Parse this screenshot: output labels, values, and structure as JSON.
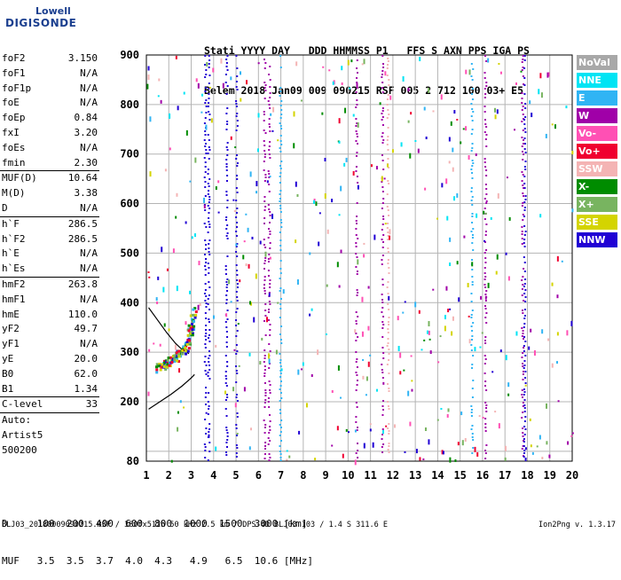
{
  "brand": {
    "line1": "Lowell",
    "line2": "DIGISONDE"
  },
  "header": {
    "line1": "Stati YYYY DAY   DDD HHMMSS P1   FFS S AXN PPS IGA PS",
    "line2": "Belem 2018 Jan09 009 090215 RSF 005 2 712 100 03+ E5"
  },
  "params_groups": [
    [
      [
        "foF2",
        "3.150"
      ],
      [
        "foF1",
        "N/A"
      ],
      [
        "foF1p",
        "N/A"
      ],
      [
        "foE",
        "N/A"
      ],
      [
        "foEp",
        "0.84"
      ],
      [
        "fxI",
        "3.20"
      ],
      [
        "foEs",
        "N/A"
      ],
      [
        "fmin",
        "2.30"
      ]
    ],
    [
      [
        "MUF(D)",
        "10.64"
      ],
      [
        "M(D)",
        "3.38"
      ],
      [
        "D",
        "N/A"
      ]
    ],
    [
      [
        "h`F",
        "286.5"
      ],
      [
        "h`F2",
        "286.5"
      ],
      [
        "h`E",
        "N/A"
      ],
      [
        "h`Es",
        "N/A"
      ]
    ],
    [
      [
        "hmF2",
        "263.8"
      ],
      [
        "hmF1",
        "N/A"
      ],
      [
        "hmE",
        "110.0"
      ],
      [
        "yF2",
        "49.7"
      ],
      [
        "yF1",
        "N/A"
      ],
      [
        "yE",
        "20.0"
      ],
      [
        "B0",
        "62.0"
      ],
      [
        "B1",
        "1.34"
      ]
    ],
    [
      [
        "C-level",
        "33"
      ]
    ]
  ],
  "auto_lines": [
    "Auto:",
    "Artist5",
    "500200"
  ],
  "legend": [
    {
      "label": "NoVal",
      "color": "#a8a8a8"
    },
    {
      "label": "NNE",
      "color": "#00e4f4"
    },
    {
      "label": "E",
      "color": "#30b4f4"
    },
    {
      "label": "W",
      "color": "#a000a8"
    },
    {
      "label": "Vo-",
      "color": "#ff50b4"
    },
    {
      "label": "Vo+",
      "color": "#f00030"
    },
    {
      "label": "SSW",
      "color": "#f4b4b4"
    },
    {
      "label": "X-",
      "color": "#008c00"
    },
    {
      "label": "X+",
      "color": "#78b460"
    },
    {
      "label": "SSE",
      "color": "#d4d400"
    },
    {
      "label": "NNW",
      "color": "#2000d4"
    }
  ],
  "dmuf": {
    "d_line": "D     100  200  400  600  800  1000  1500  3000 [km]",
    "muf_line": "MUF   3.5  3.5  3.7  4.0  4.3   4.9   6.5  10.6 [MHz]"
  },
  "footer": {
    "file": "BLJ03_20180009090215.RSF / 380fx512h 50 kHz 2.5 km / DPS-4D BLJ03 103 / 1.4 S 311.6 E",
    "version": "Ion2Png v. 1.3.17"
  },
  "chart_data": {
    "type": "scatter",
    "title": "",
    "xlabel": "",
    "ylabel": "",
    "xlim": [
      1,
      20
    ],
    "ylim": [
      80,
      900
    ],
    "x_ticks": [
      1,
      2,
      3,
      4,
      5,
      6,
      7,
      8,
      9,
      10,
      11,
      12,
      13,
      14,
      15,
      16,
      17,
      18,
      19,
      20
    ],
    "y_ticks": [
      100,
      200,
      300,
      400,
      500,
      600,
      700,
      800,
      900
    ],
    "y_tick_labels": [
      "",
      "200",
      "300",
      "400",
      "500",
      "600",
      "700",
      "800",
      "900"
    ],
    "y_min_label": "80",
    "grid": true,
    "trace": {
      "color_sequence": [
        "#78b460",
        "#d4d400",
        "#f00030",
        "#008c00",
        "#2000d4",
        "#30b4f4"
      ],
      "points": [
        [
          1.5,
          270
        ],
        [
          1.6,
          272
        ],
        [
          1.7,
          275
        ],
        [
          1.8,
          278
        ],
        [
          1.9,
          280
        ],
        [
          2.0,
          283
        ],
        [
          2.1,
          286
        ],
        [
          2.2,
          289
        ],
        [
          2.3,
          292
        ],
        [
          2.4,
          296
        ],
        [
          2.5,
          300
        ],
        [
          2.6,
          305
        ],
        [
          2.7,
          312
        ],
        [
          2.75,
          318
        ],
        [
          2.8,
          326
        ],
        [
          2.85,
          334
        ],
        [
          2.9,
          342
        ],
        [
          2.95,
          352
        ],
        [
          3.0,
          362
        ],
        [
          3.05,
          372
        ],
        [
          3.1,
          385
        ]
      ]
    },
    "model_curves": [
      {
        "name": "",
        "color": "#000000",
        "points": [
          [
            1.1,
            390
          ],
          [
            1.5,
            365
          ],
          [
            1.9,
            340
          ],
          [
            2.3,
            318
          ],
          [
            2.6,
            305
          ],
          [
            2.8,
            300
          ],
          [
            2.9,
            297
          ]
        ]
      },
      {
        "name": "",
        "color": "#000000",
        "points": [
          [
            1.1,
            185
          ],
          [
            1.6,
            200
          ],
          [
            2.1,
            215
          ],
          [
            2.6,
            232
          ],
          [
            3.0,
            248
          ],
          [
            3.15,
            255
          ]
        ]
      }
    ],
    "vertical_bands": [
      {
        "x": 3.6,
        "y0": 80,
        "y1": 900,
        "color": "#2000d4"
      },
      {
        "x": 3.75,
        "y0": 80,
        "y1": 900,
        "color": "#2000d4"
      },
      {
        "x": 4.55,
        "y0": 80,
        "y1": 900,
        "color": "#2000d4"
      },
      {
        "x": 5.0,
        "y0": 80,
        "y1": 900,
        "color": "#2000d4"
      },
      {
        "x": 6.25,
        "y0": 80,
        "y1": 900,
        "color": "#a000a8"
      },
      {
        "x": 6.45,
        "y0": 80,
        "y1": 900,
        "color": "#a000a8"
      },
      {
        "x": 6.95,
        "y0": 80,
        "y1": 900,
        "color": "#30b4f4"
      },
      {
        "x": 10.35,
        "y0": 80,
        "y1": 900,
        "color": "#a000a8"
      },
      {
        "x": 11.5,
        "y0": 80,
        "y1": 900,
        "color": "#a000a8"
      },
      {
        "x": 11.75,
        "y0": 80,
        "y1": 900,
        "color": "#f4b4b4"
      },
      {
        "x": 15.5,
        "y0": 80,
        "y1": 900,
        "color": "#30b4f4"
      },
      {
        "x": 16.1,
        "y0": 80,
        "y1": 900,
        "color": "#a000a8"
      },
      {
        "x": 17.75,
        "y0": 80,
        "y1": 900,
        "color": "#a000a8"
      },
      {
        "x": 17.85,
        "y0": 80,
        "y1": 900,
        "color": "#2000d4"
      }
    ]
  }
}
